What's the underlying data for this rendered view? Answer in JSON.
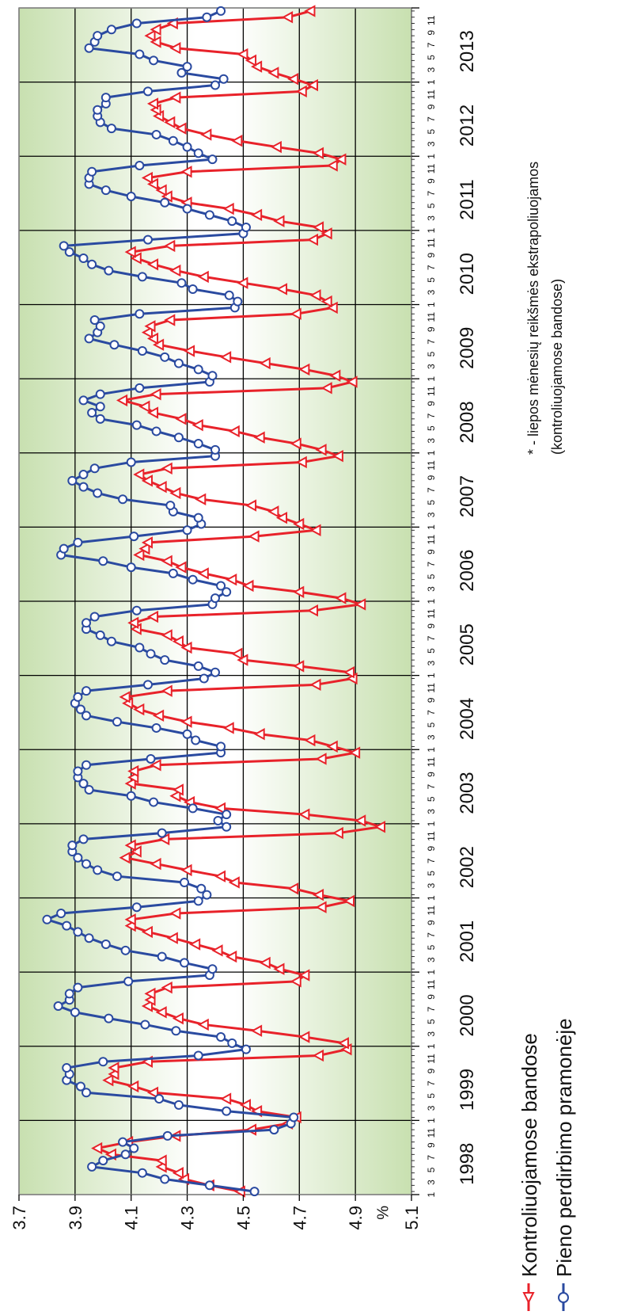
{
  "chart_data": {
    "type": "line",
    "ylabel": "%",
    "ylim": [
      3.7,
      5.1
    ],
    "yticks": [
      "3.7",
      "3.9",
      "4.1",
      "4.3",
      "4.5",
      "4.7",
      "4.9",
      "5.1"
    ],
    "grid": true,
    "month_tick_labels": [
      "1",
      "3",
      "5",
      "7",
      "9",
      "11"
    ],
    "years": [
      "1998",
      "1999",
      "2000",
      "2001",
      "2002",
      "2003",
      "2004",
      "2005",
      "2006",
      "2007",
      "2008",
      "2009",
      "2010",
      "2011",
      "2012",
      "2013"
    ],
    "x_months_per_year": 12,
    "legend_position": "bottom",
    "colors": {
      "series_red": "#e8222a",
      "series_blue": "#2a4aa0",
      "band_green": "#c8e0b0",
      "band_white": "#ffffff",
      "grid": "#000000"
    },
    "series": [
      {
        "name": "Kontroliuojamose bandose",
        "marker": "triangle",
        "values": [
          4.49,
          4.38,
          4.29,
          4.27,
          4.21,
          4.21,
          4.03,
          3.98,
          4.09,
          4.26,
          4.53,
          4.66,
          4.69,
          4.55,
          4.51,
          4.44,
          4.18,
          4.11,
          4.02,
          4.04,
          4.04,
          4.16,
          4.77,
          4.87,
          4.86,
          4.72,
          4.55,
          4.36,
          4.27,
          4.21,
          4.16,
          4.17,
          4.17,
          4.23,
          4.69,
          4.72,
          4.63,
          4.58,
          4.46,
          4.41,
          4.33,
          4.25,
          4.16,
          4.1,
          4.1,
          4.26,
          4.78,
          4.88,
          4.77,
          4.68,
          4.47,
          4.42,
          4.3,
          4.19,
          4.08,
          4.12,
          4.1,
          4.22,
          4.84,
          4.99,
          4.92,
          4.72,
          4.42,
          4.31,
          4.26,
          4.27,
          4.1,
          4.11,
          4.11,
          4.19,
          4.78,
          4.9,
          4.82,
          4.74,
          4.56,
          4.45,
          4.3,
          4.2,
          4.13,
          4.09,
          4.08,
          4.23,
          4.76,
          4.89,
          4.88,
          4.7,
          4.5,
          4.48,
          4.3,
          4.27,
          4.23,
          4.12,
          4.11,
          4.18,
          4.75,
          4.92,
          4.85,
          4.7,
          4.52,
          4.46,
          4.36,
          4.28,
          4.23,
          4.13,
          4.15,
          4.16,
          4.54,
          4.76,
          4.7,
          4.64,
          4.61,
          4.53,
          4.35,
          4.26,
          4.21,
          4.16,
          4.13,
          4.23,
          4.71,
          4.84,
          4.78,
          4.69,
          4.56,
          4.47,
          4.34,
          4.28,
          4.18,
          4.15,
          4.07,
          4.19,
          4.8,
          4.89,
          4.83,
          4.72,
          4.58,
          4.44,
          4.31,
          4.2,
          4.18,
          4.16,
          4.17,
          4.24,
          4.69,
          4.82,
          4.8,
          4.76,
          4.64,
          4.5,
          4.36,
          4.26,
          4.18,
          4.12,
          4.1,
          4.24,
          4.75,
          4.8,
          4.77,
          4.63,
          4.55,
          4.45,
          4.3,
          4.23,
          4.21,
          4.18,
          4.16,
          4.3,
          4.82,
          4.85,
          4.77,
          4.62,
          4.48,
          4.37,
          4.28,
          4.24,
          4.2,
          4.19,
          4.18,
          4.26,
          4.71,
          4.75,
          4.68,
          4.61,
          4.55,
          4.53,
          4.5,
          4.26,
          4.19,
          4.17,
          4.19,
          4.25,
          4.66,
          4.74
        ]
      },
      {
        "name": "Pieno perdirbimo pramonėje",
        "marker": "circle",
        "values": [
          4.54,
          4.38,
          4.22,
          4.14,
          3.96,
          4.0,
          4.08,
          4.11,
          4.07,
          4.23,
          4.61,
          4.67,
          4.68,
          4.44,
          4.27,
          4.2,
          3.94,
          3.92,
          3.87,
          3.88,
          3.87,
          4.0,
          4.34,
          4.51,
          4.46,
          4.42,
          4.26,
          4.15,
          4.02,
          3.9,
          3.84,
          3.88,
          3.88,
          3.91,
          4.09,
          4.38,
          4.39,
          4.29,
          4.21,
          4.08,
          4.01,
          3.95,
          3.91,
          3.87,
          3.8,
          3.85,
          4.12,
          4.34,
          4.37,
          4.35,
          4.29,
          4.05,
          3.98,
          3.94,
          3.91,
          3.89,
          3.89,
          3.93,
          4.21,
          4.44,
          4.41,
          4.44,
          4.32,
          4.18,
          4.1,
          3.95,
          3.93,
          3.91,
          3.91,
          3.94,
          4.17,
          4.42,
          4.42,
          4.33,
          4.3,
          4.19,
          4.05,
          3.94,
          3.92,
          3.9,
          3.91,
          3.94,
          4.16,
          4.36,
          4.4,
          4.34,
          4.22,
          4.17,
          4.13,
          4.03,
          3.99,
          3.94,
          3.94,
          3.97,
          4.12,
          4.39,
          4.4,
          4.44,
          4.42,
          4.32,
          4.25,
          4.1,
          4.0,
          3.85,
          3.86,
          3.91,
          4.11,
          4.3,
          4.35,
          4.34,
          4.25,
          4.24,
          4.07,
          3.98,
          3.93,
          3.89,
          3.93,
          3.97,
          4.1,
          4.4,
          4.4,
          4.34,
          4.27,
          4.19,
          4.12,
          3.99,
          3.96,
          3.99,
          3.93,
          3.99,
          4.13,
          4.38,
          4.39,
          4.34,
          4.27,
          4.22,
          4.14,
          4.04,
          3.95,
          3.98,
          3.99,
          3.97,
          4.13,
          4.47,
          4.48,
          4.45,
          4.32,
          4.28,
          4.14,
          4.02,
          3.96,
          3.93,
          3.88,
          3.86,
          4.16,
          4.5,
          4.51,
          4.46,
          4.38,
          4.3,
          4.22,
          4.1,
          4.01,
          3.95,
          3.95,
          3.96,
          4.13,
          4.39,
          4.34,
          4.3,
          4.25,
          4.19,
          4.03,
          3.99,
          3.98,
          3.98,
          4.01,
          4.01,
          4.16,
          4.4,
          4.43,
          4.28,
          4.3,
          4.18,
          4.13,
          3.95,
          3.97,
          3.98,
          4.03,
          4.12,
          4.37,
          4.42
        ]
      }
    ],
    "footnote_line1": "* - liepos mėnesių reikšmės ekstrapoliuojamos",
    "footnote_line2": "(kontroliuojamose bandose)"
  }
}
